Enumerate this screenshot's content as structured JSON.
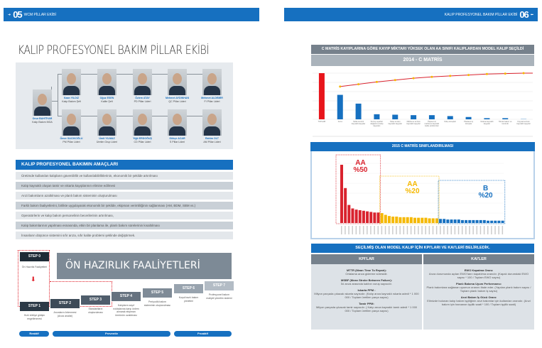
{
  "left_header": {
    "page": "05",
    "section": "WCM PİLLAR EKİBİ"
  },
  "right_header": {
    "page": "06",
    "section": "KALIP PROFESYONEL BAKIM PİLLAR EKİBİ"
  },
  "title": "KALIP PROFESYONEL BAKIM PİLLAR EKİBİ",
  "org": {
    "leader": {
      "name": "Onur BAHTİYAR",
      "role": "Kalıp Bakım MGA"
    },
    "top": [
      {
        "name": "Kaan YILDIZ",
        "role": "Kalıp Bakım Şefi"
      },
      {
        "name": "Oğuz ESEN",
        "role": "Kalite Şefi"
      },
      {
        "name": "Özlem ATAY",
        "role": "PD Pillar Lideri"
      },
      {
        "name": "Mehmet AYDINHAN",
        "role": "QC Pillar Lideri"
      },
      {
        "name": "Mehmet ALDEMİR",
        "role": "FI Pillar Lideri"
      }
    ],
    "bottom": [
      {
        "name": "Ömer SACIKOĞLU",
        "role": "PM Pillar Lideri"
      },
      {
        "name": "Ümit YILMAZ",
        "role": "Üretim Grup Lideri"
      },
      {
        "name": "Yiğit ERDOĞUŞ",
        "role": "CD Pillar Lideri"
      },
      {
        "name": "Gökçe ACAR",
        "role": "S Pillar Lideri"
      },
      {
        "name": "Rahim OLT",
        "role": "AM Pillar Lideri"
      }
    ]
  },
  "goals": {
    "title": "KALIP PROFESYONEL BAKIMIN AMAÇLARI",
    "items": [
      "Üretimde kullanılan kalıpların güvenilirlik ve kullanılabilirliklerinin, ekonomik bir şekilde artırılması",
      "Kalıp kaynaklı oluşan tamir ve ıskarta kayıplarının elimine edilmesi",
      "Arızi bakımların azaltılması ve planlı bakım sisteminin oluşturulması",
      "Farklı bakım faaliyetlerini, birlikte uygulayarak ekonomik bir şekilde, ekipman verimliliğinin sağlanması (AM, BDM, SBM vs.)",
      "Operatörlerin ve kalıp bakım personelinin becerilerinin artırılması,",
      "Kalıp bakımlarının yapılması esnasında, etkin bir planlama ile, planlı bakım sürelerinin kısaltılması",
      "İnsanların düşünce sistemini sıfır arıza, sıfır kalite problemi şeklinde değiştirmek."
    ]
  },
  "steps": {
    "banner": "ÖN HAZIRLIK FAALİYETLERİ",
    "step0": {
      "label": "STEP 0",
      "desc": "Ön Hazırlık Faaliyetleri"
    },
    "items": [
      {
        "label": "STEP 1",
        "desc": "Hızlı kötüye gidişin engellenmesi"
      },
      {
        "label": "STEP 2",
        "desc": "Arızaların önlenmesi (Arıza analizi)"
      },
      {
        "label": "STEP 3",
        "desc": "Standartların oluşturulması"
      },
      {
        "label": "STEP 4",
        "desc": "Kalıpların zayıf noktalarına karşı önlem alınarak ekipman ömrünün uzatılması"
      },
      {
        "label": "STEP 5",
        "desc": "Periyodik bakım sisteminin oluşturulması"
      },
      {
        "label": "STEP 6",
        "desc": "Koşul bazlı bakım yönetimi"
      },
      {
        "label": "STEP 7",
        "desc": "Profesyonel bakım maliyet yönetim sistemi"
      }
    ],
    "phases": [
      "Reaktif",
      "Preventiv",
      "Proaktif"
    ]
  },
  "chart_data": [
    {
      "type": "bar",
      "title": "C MATRİS KAYIPLARINA GÖRE KAYIP MİKTARI YÜKSEK OLAN AA SINIFI KALIPLARDAN MODEL KALIP SEÇİLDİ",
      "subtitle": "2014 - C MATRİS",
      "categories": [
        "TOPLAM",
        "Arıza",
        "Kalite kontrol kaynaklı kayıplar",
        "Set-Up ayarları değiştirme kalıp kayıpları",
        "Kalıp arızası kaynaklı kayıplar",
        "Malzeme arızası kaynaklı kayıplar",
        "Ölçüsel ve malzeme kaynaklı kalite problemleri",
        "Kalıp duruşları",
        "Planlanmış duruşlar",
        "Iskarta kaynaklı kayıplar",
        "Teknik bakım ve kontrolü",
        "Kaynak arızası kaynaklı kayıplar"
      ],
      "values": [
        100,
        53,
        34,
        11,
        10,
        9,
        9,
        7,
        5,
        2.5,
        2.5,
        0.5
      ],
      "cumulative": [
        null,
        71,
        76,
        81,
        85,
        89,
        92,
        94,
        96,
        98,
        99,
        100
      ],
      "ylim": [
        0,
        100
      ],
      "grid": true,
      "colors": {
        "total": "#e8151b",
        "bars": "#1670c0",
        "line": "#d9232e",
        "points": "#f5b800"
      }
    },
    {
      "type": "bar",
      "title": "2015 C MATRİS SINIFLANDIRILMASI",
      "groups": [
        {
          "label": "AA",
          "share": "%50",
          "color": "#d9232e",
          "values": [
            100,
            60,
            31,
            25,
            23,
            22,
            21,
            20,
            19,
            18,
            18
          ]
        },
        {
          "label": "AA",
          "share": "%20",
          "color": "#f5b800",
          "values": [
            17,
            14,
            12,
            11,
            11,
            10,
            10,
            10,
            10,
            9,
            9,
            9,
            9,
            8,
            8,
            8
          ]
        },
        {
          "label": "B",
          "share": "%20",
          "color": "#1670c0",
          "values": [
            7,
            7,
            6,
            6,
            6,
            6,
            5,
            5,
            5,
            5,
            5,
            5,
            5,
            4,
            4,
            4,
            4,
            4
          ]
        }
      ]
    }
  ],
  "kpi": {
    "title": "SEÇİLMİŞ OLAN MODEL KALIP İÇİN KPI'LARI VE KAI'LERİ BELİRLEDİK.",
    "kpi_header": "KPI'LAR",
    "kai_header": "KAI'LER",
    "kpis": [
      {
        "name": "MTTR (Mean Time To Repair):",
        "desc": "Ortalama arıza giderme süresidir."
      },
      {
        "name": "MSBF (Mean Stroke Between Failure):",
        "desc": "İki arıza arasında kalıbın vuruş sayısıdır."
      },
      {
        "name": "Iskarta PPM :",
        "desc": "Milyon parçada çıkacak ıskarta sayısıdır. (Kalıp arıza kaynaklı ıskarta adedi * 1 000 000 / Toplam üretilen parça sayısı)"
      },
      {
        "name": "Tamir PPM:",
        "desc": "Milyon parçada çıkacak tamir sayısıdır. ( Kalıp arıza kaynaklı tamir adedi * 1 000 000 / Toplam üretilen parça sayısı)"
      }
    ],
    "kais": [
      {
        "name": "EWO Kapatma Oranı:",
        "desc": "Arıza durumunda açılan EWO'ların kapatılma oranıdır. (Kapalı durumdaki EWO sayısı * 100 / Toplam EWO sayısı)"
      },
      {
        "name": "Planlı Bakıma Uyum Performansı:",
        "desc": "Planlı bakımlara sağlanan uyumun oranını ifade eder. (Yapılan planlı bakım sayısı / Toplam planlı bakım iş sayısı)"
      },
      {
        "name": "Arızi Bakım İş Gücü Oranı:",
        "desc": "Elimizde bulunan kalıp bakım işçiliğinin arızi bakımlar için kullanılan oranıdır. (Arızi bakım için harcanan işçilik saati * 100 / Toplam işçilik saati)"
      }
    ]
  }
}
